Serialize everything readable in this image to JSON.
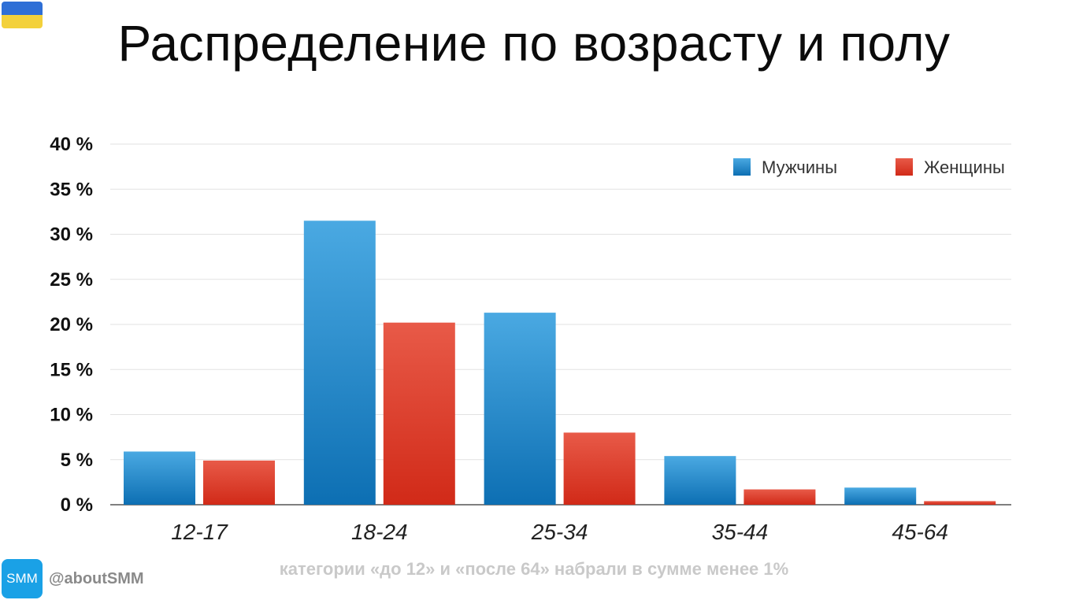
{
  "title": "Распределение по возрасту и полу",
  "footnote": "категории «до 12» и «после 64» набрали в сумме менее 1%",
  "brand": {
    "logo_text": "SMM",
    "handle": "@aboutSMM"
  },
  "colors": {
    "male": "#1580c8",
    "female": "#d9362a",
    "grid": "#e2e2e2",
    "axis": "#555555"
  },
  "chart_data": {
    "type": "bar",
    "title": "Распределение по возрасту и полу",
    "categories": [
      "12-17",
      "18-24",
      "25-34",
      "35-44",
      "45-64"
    ],
    "series": [
      {
        "name": "Мужчины",
        "values": [
          5.9,
          31.5,
          21.3,
          5.4,
          1.9
        ]
      },
      {
        "name": "Женщины",
        "values": [
          4.9,
          20.2,
          8.0,
          1.7,
          0.4
        ]
      }
    ],
    "ylim": [
      0,
      40
    ],
    "yticks": [
      0,
      5,
      10,
      15,
      20,
      25,
      30,
      35,
      40
    ],
    "ytick_labels": [
      "0 %",
      "5 %",
      "10 %",
      "15 %",
      "20 %",
      "25 %",
      "30 %",
      "35 %",
      "40 %"
    ],
    "grid": true,
    "legend_position": "top-right"
  }
}
